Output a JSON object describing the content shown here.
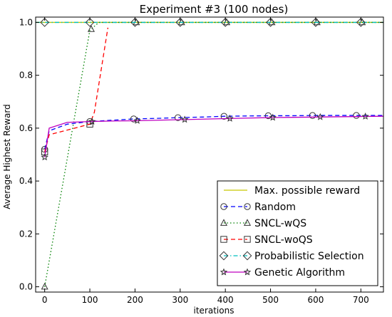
{
  "chart_data": {
    "type": "line",
    "title": "Experiment #3 (100 nodes)",
    "xlabel": "iterations",
    "ylabel": "Average Highest Reward",
    "xlim": [
      -20,
      750
    ],
    "ylim": [
      -0.02,
      1.02
    ],
    "xticks": [
      0,
      100,
      200,
      300,
      400,
      500,
      600,
      700
    ],
    "yticks": [
      0.0,
      0.2,
      0.4,
      0.6,
      0.8,
      1.0
    ],
    "xtick_labels": [
      "0",
      "100",
      "200",
      "300",
      "400",
      "500",
      "600",
      "700"
    ],
    "ytick_labels": [
      "0.0",
      "0.2",
      "0.4",
      "0.6",
      "0.8",
      "1.0"
    ],
    "grid": false,
    "legend_position": "bottom-right",
    "series": [
      {
        "name": "Max. possible reward",
        "color": "#c8c800",
        "dash": "",
        "marker": "none",
        "x": [
          -20,
          750
        ],
        "y": [
          1.0,
          1.0
        ],
        "marker_x": []
      },
      {
        "name": "Random",
        "color": "#0000ff",
        "dash": "6,4",
        "marker": "circle",
        "x": [
          0,
          10,
          50,
          100,
          150,
          200,
          250,
          300,
          350,
          400,
          450,
          500,
          550,
          600,
          650,
          700,
          750
        ],
        "y": [
          0.52,
          0.59,
          0.615,
          0.625,
          0.63,
          0.635,
          0.637,
          0.64,
          0.642,
          0.645,
          0.646,
          0.647,
          0.647,
          0.648,
          0.648,
          0.648,
          0.648
        ],
        "marker_x": [
          0,
          100,
          197,
          295,
          397,
          495,
          593,
          690
        ]
      },
      {
        "name": "SNCL-wQS",
        "color": "#008000",
        "dash": "1.5,3",
        "marker": "triangle",
        "x": [
          0,
          100,
          120,
          750
        ],
        "y": [
          0.0,
          0.97,
          1.0,
          1.0
        ],
        "marker_x": [
          0,
          103,
          203,
          303,
          403,
          503,
          603,
          703
        ]
      },
      {
        "name": "SNCL-woQS",
        "color": "#ff0000",
        "dash": "6,4",
        "marker": "square",
        "x": [
          0,
          10,
          100,
          110,
          140
        ],
        "y": [
          0.51,
          0.575,
          0.615,
          0.66,
          0.98
        ],
        "marker_x": [
          0,
          100
        ]
      },
      {
        "name": "Probabilistic Selection",
        "color": "#00bfbf",
        "dash": "6,3,1.5,3",
        "marker": "diamond",
        "x": [
          -20,
          750
        ],
        "y": [
          1.0,
          1.0
        ],
        "marker_x": [
          0,
          100,
          200,
          300,
          400,
          500,
          600,
          700
        ]
      },
      {
        "name": "Genetic Algorithm",
        "color": "#bf00bf",
        "dash": "",
        "marker": "star",
        "x": [
          0,
          10,
          50,
          100,
          150,
          200,
          250,
          300,
          350,
          400,
          450,
          500,
          550,
          600,
          650,
          700,
          750
        ],
        "y": [
          0.49,
          0.6,
          0.622,
          0.625,
          0.627,
          0.628,
          0.63,
          0.632,
          0.634,
          0.636,
          0.638,
          0.64,
          0.641,
          0.642,
          0.643,
          0.644,
          0.645
        ],
        "marker_x": [
          0,
          105,
          205,
          310,
          410,
          505,
          610,
          710
        ]
      }
    ]
  }
}
